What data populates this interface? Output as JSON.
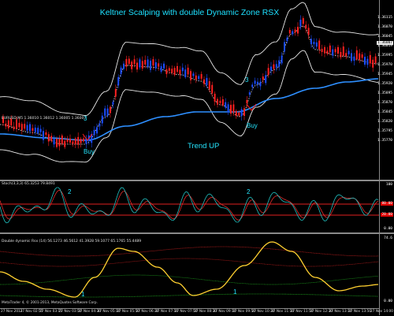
{
  "chart": {
    "title": "Keltner Scalping with double Dynamic Zone RSX",
    "symbol_info": "EURUSD,M5  1.36010 1.36012 1.36005 1.36007",
    "trend_label": "Trend UP",
    "annotations": [
      {
        "text": "3",
        "role": "signal-count-a"
      },
      {
        "text": "Buy",
        "role": "buy-signal-a"
      },
      {
        "text": "3",
        "role": "signal-count-b"
      },
      {
        "text": "Buy",
        "role": "buy-signal-b"
      }
    ]
  },
  "price_axis": {
    "labels": [
      "1.36115",
      "1.36070",
      "1.36045",
      "1.36019",
      "1.35995",
      "1.35970",
      "1.35945",
      "1.35920",
      "1.35895",
      "1.35870",
      "1.35845",
      "1.35820",
      "1.35795",
      "1.35770"
    ],
    "current_price": "1.36007"
  },
  "stoch": {
    "label": "Stoch(3,3,3) 65.3253 79.8491",
    "markers": [
      "2",
      "2"
    ],
    "axis_labels": [
      "100",
      "80.00",
      "20.00",
      "0.00"
    ]
  },
  "rsx": {
    "label": "Double dynamic Rsx (14) 56.1273 46.5612 41.3928 59.1077 65.1765 55.4489",
    "markers": [
      "1",
      "1"
    ],
    "axis_labels": [
      "74.6",
      "0.00"
    ]
  },
  "time_axis": {
    "labels": [
      "27 Nov 2013",
      "27 Nov 02:55",
      "27 Nov 03:15",
      "27 Nov 03:50",
      "27 Nov 04:30",
      "27 Nov 05:10",
      "27 Nov 05:50",
      "27 Nov 06:30",
      "27 Nov 07:10",
      "27 Nov 07:50",
      "27 Nov 08:30",
      "27 Nov 09:10",
      "27 Nov 09:50",
      "27 Nov 10:30",
      "27 Nov 11:10",
      "27 Nov 11:50",
      "27 Nov 12:30",
      "27 Nov 13:10",
      "27 Nov 13:50",
      "27 Nov 14:00"
    ]
  },
  "footer": "MetaTrader 4, © 2001-2013, MetaQuotes Software Corp.",
  "colors": {
    "bull": "#1b4dff",
    "bear": "#ff2020",
    "channel": "#e8e8e8",
    "ma": "#2e8fff",
    "stoch_main": "#20c0c0",
    "stoch_signal": "#ff3030",
    "level": "#e02020",
    "rsx": "#ffd030",
    "zone_upper": "#cc2020",
    "zone_lower": "#20b020",
    "text_cyan": "#25e6ff"
  }
}
